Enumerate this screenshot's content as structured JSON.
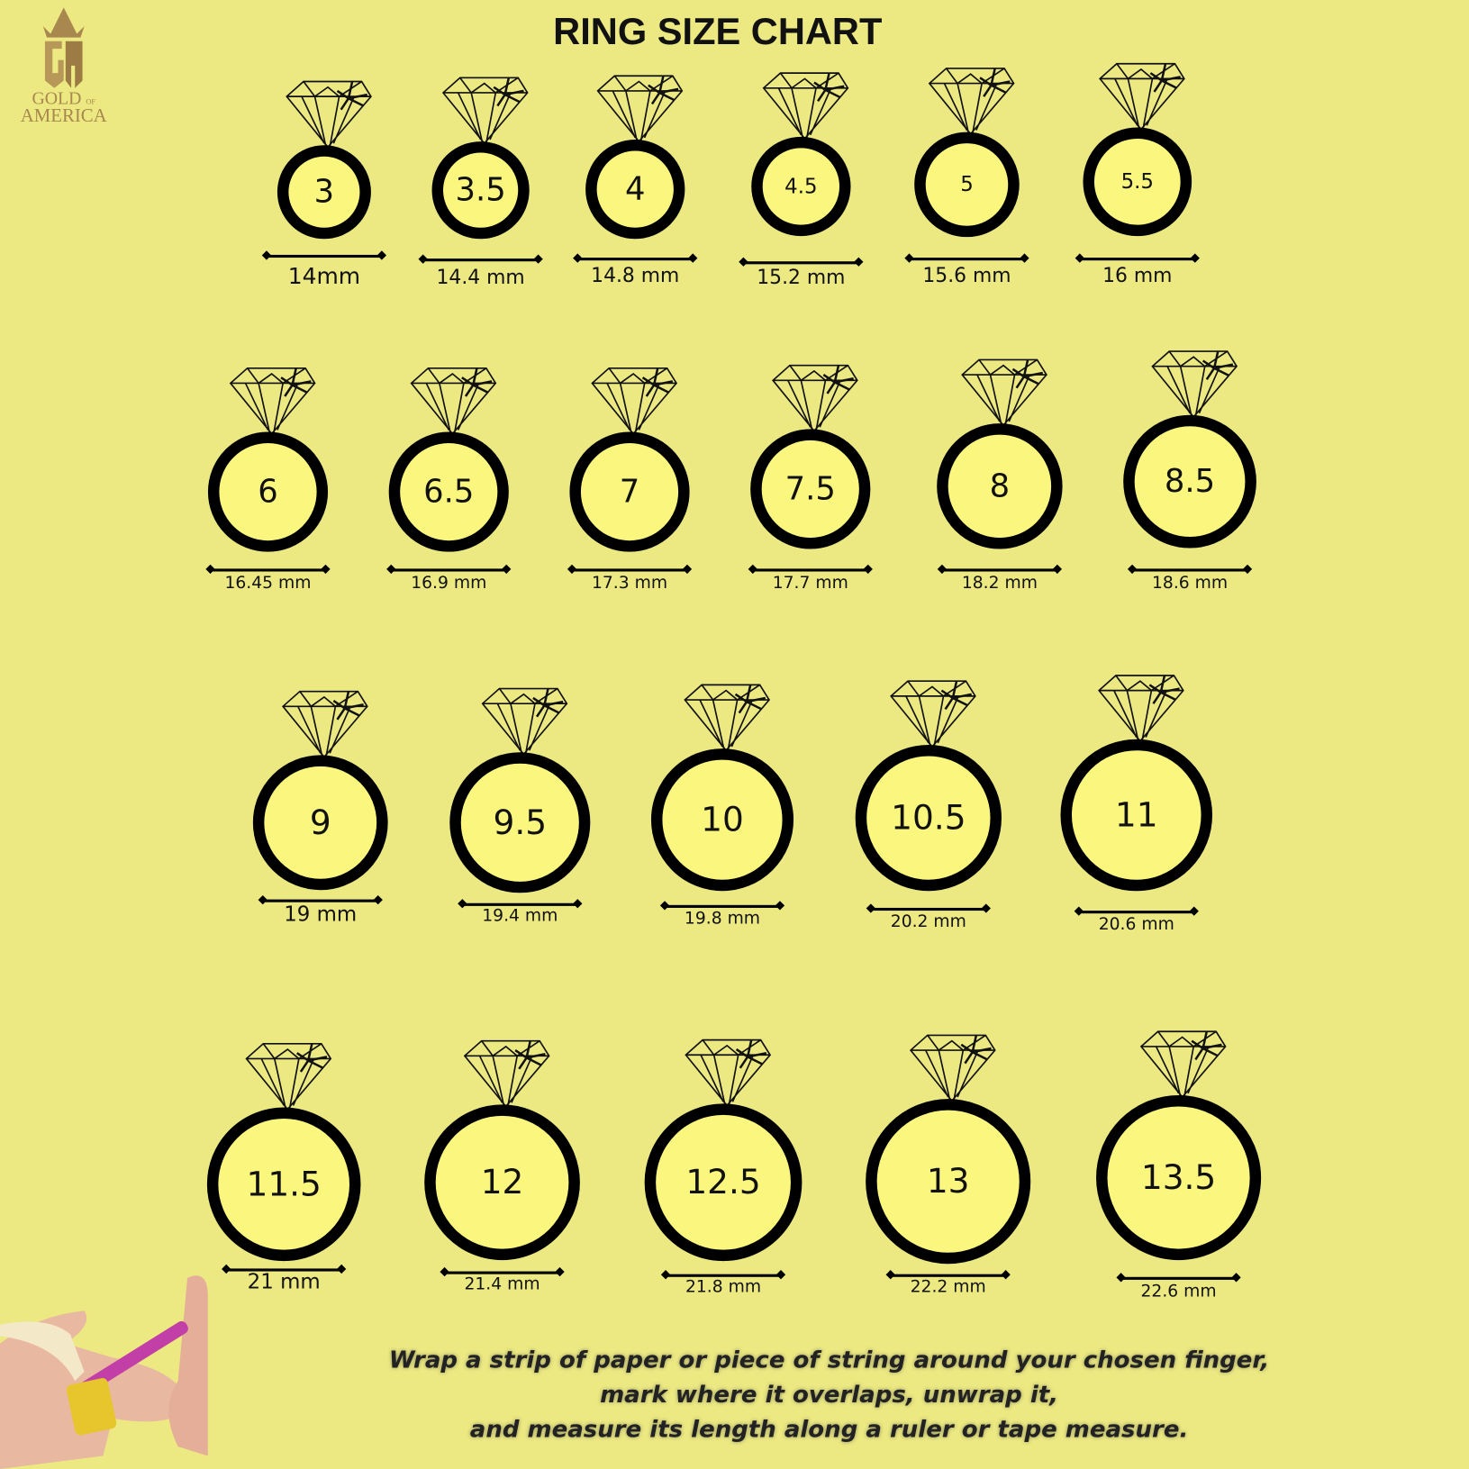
{
  "title": "RING SIZE CHART",
  "logo": {
    "monogram": "GA",
    "line1": "GOLD",
    "of": "OF",
    "line2": "AMERICA",
    "color": "#a8884e"
  },
  "colors": {
    "background": "#ece983",
    "ring_fill": "#fbf77e",
    "ring_stroke": "#000000"
  },
  "rings": [
    {
      "size": "3",
      "diameter": "14mm"
    },
    {
      "size": "3.5",
      "diameter": "14.4 mm"
    },
    {
      "size": "4",
      "diameter": "14.8 mm"
    },
    {
      "size": "4.5",
      "diameter": "15.2 mm"
    },
    {
      "size": "5",
      "diameter": "15.6 mm"
    },
    {
      "size": "5.5",
      "diameter": "16 mm"
    },
    {
      "size": "6",
      "diameter": "16.45 mm"
    },
    {
      "size": "6.5",
      "diameter": "16.9 mm"
    },
    {
      "size": "7",
      "diameter": "17.3 mm"
    },
    {
      "size": "7.5",
      "diameter": "17.7 mm"
    },
    {
      "size": "8",
      "diameter": "18.2 mm"
    },
    {
      "size": "8.5",
      "diameter": "18.6 mm"
    },
    {
      "size": "9",
      "diameter": "19 mm"
    },
    {
      "size": "9.5",
      "diameter": "19.4 mm"
    },
    {
      "size": "10",
      "diameter": "19.8 mm"
    },
    {
      "size": "10.5",
      "diameter": "20.2 mm"
    },
    {
      "size": "11",
      "diameter": "20.6 mm"
    },
    {
      "size": "11.5",
      "diameter": "21 mm"
    },
    {
      "size": "12",
      "diameter": "21.4 mm"
    },
    {
      "size": "12.5",
      "diameter": "21.8 mm"
    },
    {
      "size": "13",
      "diameter": "22.2 mm"
    },
    {
      "size": "13.5",
      "diameter": "22.6 mm"
    }
  ],
  "instructions": [
    "Wrap a strip of paper or piece of string around your chosen finger,",
    "mark where it overlaps, unwrap it,",
    "and measure its length along a ruler or tape measure."
  ]
}
